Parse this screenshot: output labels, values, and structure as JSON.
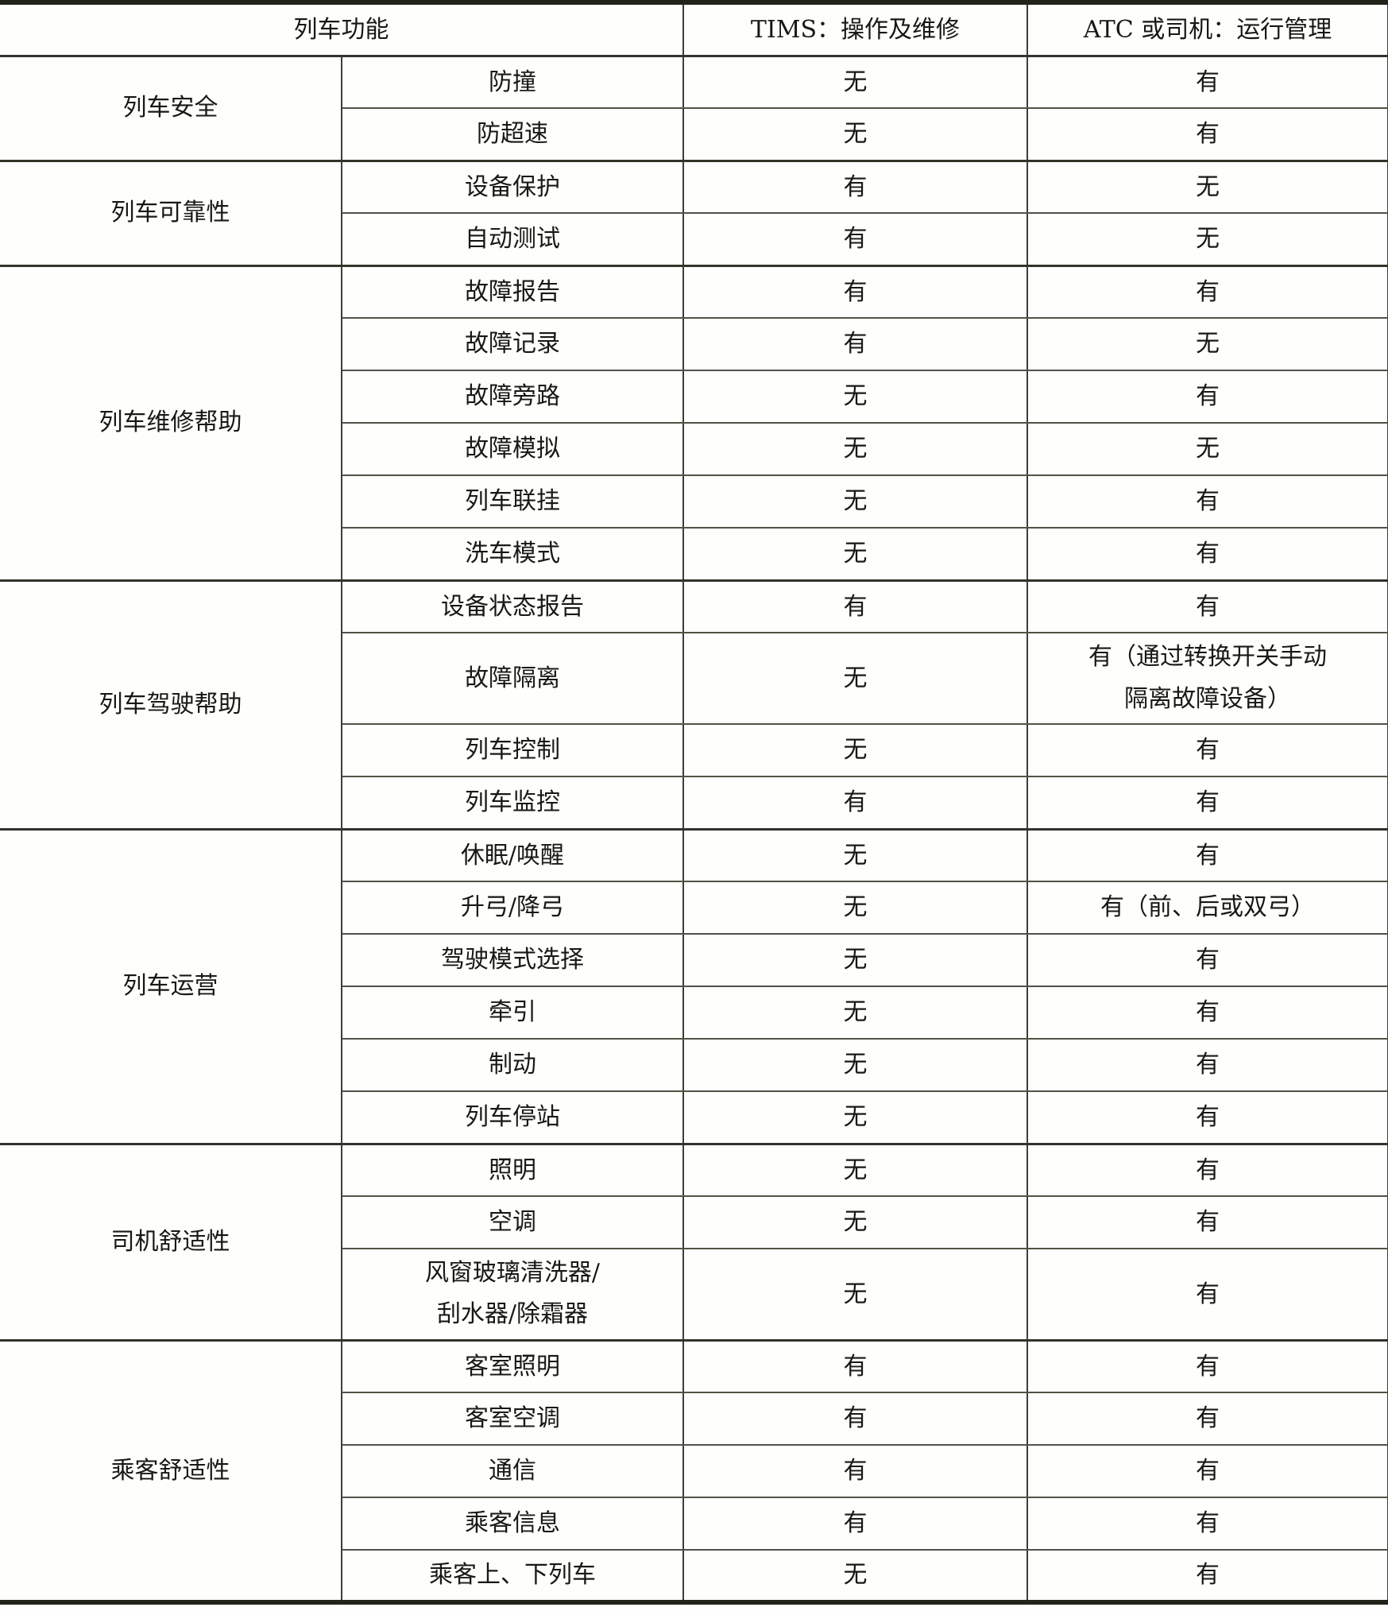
{
  "table": {
    "header": {
      "col_function": "列车功能",
      "col_tims": "TIMS：操作及维修",
      "col_atc": "ATC 或司机：运行管理"
    },
    "groups": [
      {
        "label": "列车安全",
        "rows": [
          {
            "function": "防撞",
            "tims": "无",
            "atc": "有"
          },
          {
            "function": "防超速",
            "tims": "无",
            "atc": "有"
          }
        ]
      },
      {
        "label": "列车可靠性",
        "rows": [
          {
            "function": "设备保护",
            "tims": "有",
            "atc": "无"
          },
          {
            "function": "自动测试",
            "tims": "有",
            "atc": "无"
          }
        ]
      },
      {
        "label": "列车维修帮助",
        "rows": [
          {
            "function": "故障报告",
            "tims": "有",
            "atc": "有"
          },
          {
            "function": "故障记录",
            "tims": "有",
            "atc": "无"
          },
          {
            "function": "故障旁路",
            "tims": "无",
            "atc": "有"
          },
          {
            "function": "故障模拟",
            "tims": "无",
            "atc": "无"
          },
          {
            "function": "列车联挂",
            "tims": "无",
            "atc": "有"
          },
          {
            "function": "洗车模式",
            "tims": "无",
            "atc": "有"
          }
        ]
      },
      {
        "label": "列车驾驶帮助",
        "rows": [
          {
            "function": "设备状态报告",
            "tims": "有",
            "atc": "有"
          },
          {
            "function": "故障隔离",
            "tims": "无",
            "atc": "有（通过转换开关手动\n隔离故障设备）"
          },
          {
            "function": "列车控制",
            "tims": "无",
            "atc": "有"
          },
          {
            "function": "列车监控",
            "tims": "有",
            "atc": "有"
          }
        ]
      },
      {
        "label": "列车运营",
        "rows": [
          {
            "function": "休眠/唤醒",
            "tims": "无",
            "atc": "有"
          },
          {
            "function": "升弓/降弓",
            "tims": "无",
            "atc": "有（前、后或双弓）"
          },
          {
            "function": "驾驶模式选择",
            "tims": "无",
            "atc": "有"
          },
          {
            "function": "牵引",
            "tims": "无",
            "atc": "有"
          },
          {
            "function": "制动",
            "tims": "无",
            "atc": "有"
          },
          {
            "function": "列车停站",
            "tims": "无",
            "atc": "有"
          }
        ]
      },
      {
        "label": "司机舒适性",
        "rows": [
          {
            "function": "照明",
            "tims": "无",
            "atc": "有"
          },
          {
            "function": "空调",
            "tims": "无",
            "atc": "有"
          },
          {
            "function": "风窗玻璃清洗器/\n刮水器/除霜器",
            "tims": "无",
            "atc": "有"
          }
        ]
      },
      {
        "label": "乘客舒适性",
        "rows": [
          {
            "function": "客室照明",
            "tims": "有",
            "atc": "有"
          },
          {
            "function": "客室空调",
            "tims": "有",
            "atc": "有"
          },
          {
            "function": "通信",
            "tims": "有",
            "atc": "有"
          },
          {
            "function": "乘客信息",
            "tims": "有",
            "atc": "有"
          },
          {
            "function": "乘客上、下列车",
            "tims": "无",
            "atc": "有"
          }
        ]
      }
    ]
  }
}
